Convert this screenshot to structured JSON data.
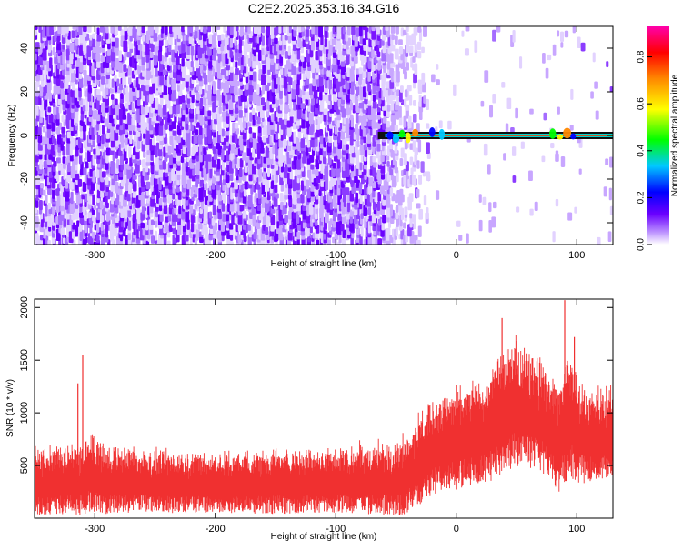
{
  "figure_title": "C2E2.2025.353.16.34.G16",
  "chart_data": [
    {
      "type": "heatmap",
      "title": "C2E2.2025.353.16.34.G16",
      "xlabel": "Height of straight line (km)",
      "ylabel": "Frequency (Hz)",
      "xlim": [
        -350,
        130
      ],
      "ylim": [
        -50,
        50
      ],
      "x_ticks": [
        -300,
        -200,
        -100,
        0,
        100
      ],
      "x_tick_labels": [
        "-300",
        "-200",
        "-100",
        "0",
        "100"
      ],
      "y_ticks": [
        -40,
        -20,
        0,
        20,
        40
      ],
      "y_tick_labels": [
        "-40",
        "-20",
        "0",
        "20",
        "40"
      ],
      "colorbar": {
        "label": "Normalized spectral amplitude",
        "range": [
          0.0,
          0.93
        ],
        "ticks": [
          0.0,
          0.2,
          0.4,
          0.6,
          0.8
        ],
        "tick_labels": [
          "0.0",
          "0.2",
          "0.4",
          "0.6",
          "0.8"
        ],
        "colormap": [
          "#ffffff",
          "#6a00ff",
          "#0000ff",
          "#00c8ff",
          "#00ff00",
          "#ffff00",
          "#ff8800",
          "#ff0000",
          "#ff00aa"
        ]
      },
      "features": {
        "noise_region_x": [
          -350,
          -60
        ],
        "fading_region_x": [
          -60,
          -20
        ],
        "carrier_frequency_hz": 0,
        "carrier_start_x": -65,
        "carrier_amplitude": 0.9
      }
    },
    {
      "type": "line",
      "xlabel": "Height of straight line (km)",
      "ylabel": "SNR (10 * v/v)",
      "xlim": [
        -350,
        130
      ],
      "ylim": [
        0,
        2080
      ],
      "x_ticks": [
        -300,
        -200,
        -100,
        0,
        100
      ],
      "x_tick_labels": [
        "-300",
        "-200",
        "-100",
        "0",
        "100"
      ],
      "y_ticks": [
        500,
        1000,
        1500,
        2000
      ],
      "y_tick_labels": [
        "500",
        "1000",
        "1500",
        "2000"
      ],
      "color": "#f03030",
      "envelope": {
        "x": [
          -350,
          -330,
          -310,
          -303,
          -295,
          -280,
          -250,
          -200,
          -150,
          -120,
          -100,
          -80,
          -60,
          -45,
          -30,
          -20,
          -10,
          0,
          10,
          20,
          30,
          40,
          50,
          60,
          70,
          80,
          85,
          90,
          95,
          100,
          110,
          120,
          130
        ],
        "mean": [
          330,
          340,
          350,
          420,
          360,
          340,
          330,
          320,
          330,
          340,
          340,
          340,
          350,
          380,
          550,
          650,
          700,
          720,
          760,
          800,
          850,
          1000,
          1050,
          1020,
          950,
          850,
          700,
          900,
          950,
          800,
          760,
          770,
          800
        ],
        "spread": [
          300,
          300,
          320,
          350,
          320,
          300,
          280,
          270,
          290,
          290,
          290,
          300,
          320,
          380,
          420,
          430,
          440,
          450,
          450,
          470,
          500,
          560,
          560,
          540,
          520,
          500,
          480,
          560,
          560,
          480,
          420,
          400,
          400
        ]
      },
      "peaks": [
        {
          "x": -310,
          "y": 1550
        },
        {
          "x": -314,
          "y": 1280
        },
        {
          "x": 38,
          "y": 1900
        },
        {
          "x": 90,
          "y": 2070
        },
        {
          "x": 98,
          "y": 1720
        }
      ]
    }
  ]
}
